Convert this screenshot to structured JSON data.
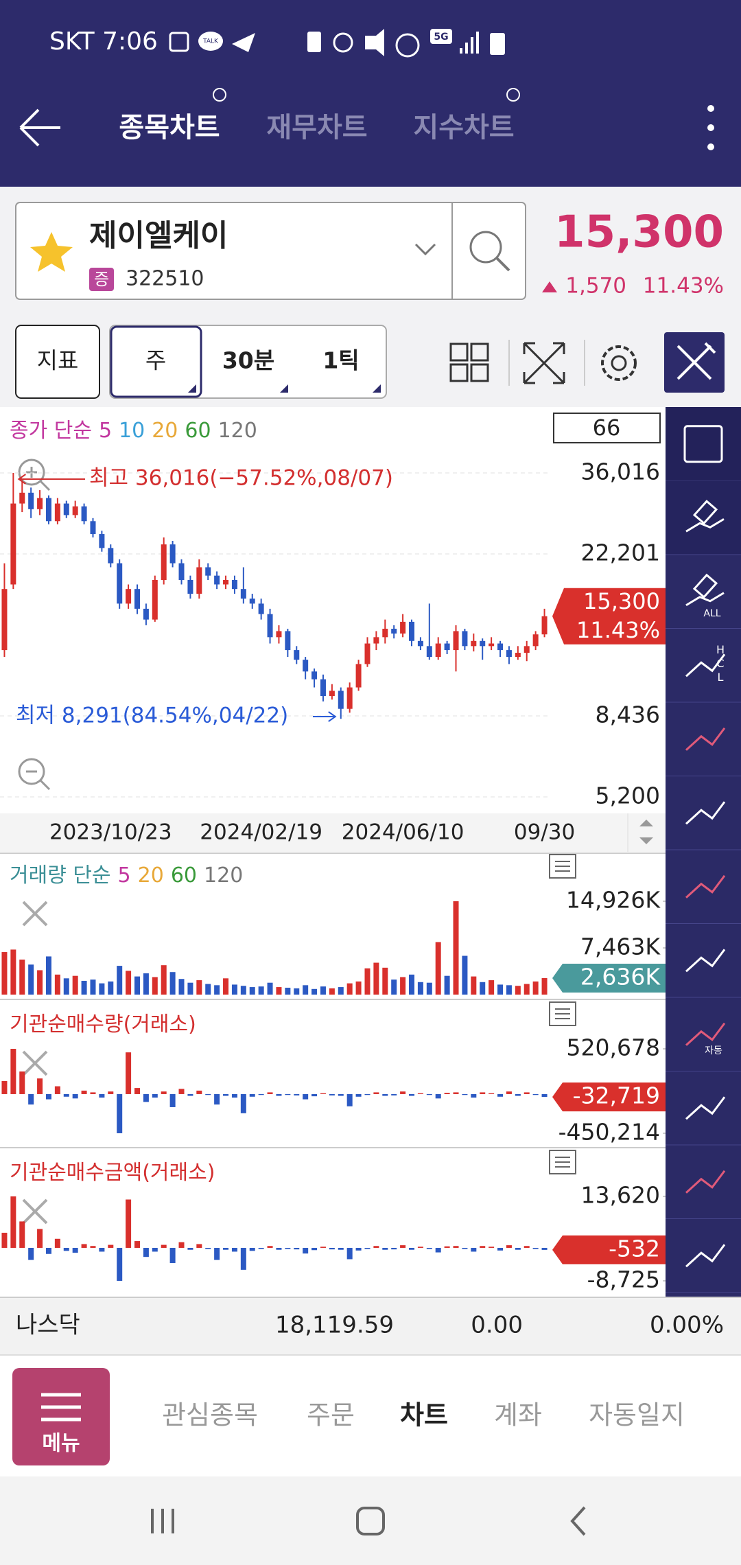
{
  "status_bar": {
    "time": "SKT 7:06",
    "talk": "TALK",
    "network": "5G"
  },
  "header": {
    "tabs": [
      "종목차트",
      "재무차트",
      "지수차트"
    ]
  },
  "stock": {
    "name": "제이엘케이",
    "market_badge": "증",
    "code": "322510",
    "price": "15,300",
    "change": "1,570",
    "change_rate": "11.43%"
  },
  "toolbar": {
    "buttons": [
      "지표",
      "주",
      "30분",
      "1틱"
    ]
  },
  "tools": {
    "all": "ALL",
    "hcl": [
      "H",
      "C",
      "L"
    ],
    "auto": "자동"
  },
  "chart_data": [
    {
      "type": "candlestick",
      "legend_title": "종가 단순",
      "ma_periods": [
        5,
        10,
        20,
        60,
        120
      ],
      "ma_colors": [
        "#c2379f",
        "#3aa0d8",
        "#e8a838",
        "#3a9a3a",
        "#777777"
      ],
      "legend_color": "#c2379f",
      "visible_count": 66,
      "categories": [
        null,
        null,
        null,
        null,
        null,
        null,
        null,
        null,
        null,
        null,
        null,
        null,
        "2023/10/23",
        null,
        null,
        null,
        null,
        null,
        null,
        null,
        null,
        null,
        null,
        null,
        null,
        null,
        null,
        null,
        null,
        "2024/02/19",
        null,
        null,
        null,
        null,
        null,
        null,
        null,
        null,
        null,
        null,
        null,
        null,
        null,
        null,
        null,
        "2024/06/10",
        null,
        null,
        null,
        null,
        null,
        null,
        null,
        null,
        null,
        null,
        null,
        null,
        null,
        null,
        null,
        "09/30"
      ],
      "open": [
        12500,
        18500,
        30000,
        32000,
        29000,
        31000,
        27000,
        30000,
        28000,
        29500,
        27000,
        25000,
        23000,
        21000,
        16500,
        18000,
        16000,
        15000,
        19000,
        23500,
        21000,
        19000,
        17500,
        20500,
        19500,
        18500,
        19000,
        18000,
        17000,
        16500,
        15500,
        13500,
        14000,
        12500,
        11800,
        11000,
        10500,
        9500,
        9800,
        8800,
        10000,
        11500,
        13000,
        13500,
        14200,
        13800,
        14800,
        13200,
        12800,
        12000,
        13000,
        12500,
        14000,
        12800,
        13200,
        12800,
        13000,
        12500,
        12000,
        12300,
        12800,
        13730
      ],
      "high": [
        21000,
        36016,
        34500,
        33000,
        32500,
        31500,
        31000,
        30500,
        30500,
        30000,
        27500,
        25500,
        23500,
        21500,
        18500,
        18500,
        16500,
        19500,
        24500,
        24000,
        21500,
        19500,
        21500,
        21000,
        20000,
        19500,
        19500,
        20500,
        17500,
        17000,
        16000,
        14500,
        14200,
        12800,
        12000,
        11200,
        10800,
        10200,
        10000,
        10300,
        11800,
        13500,
        14000,
        15000,
        14500,
        15500,
        15000,
        13500,
        16500,
        13500,
        13200,
        14500,
        14200,
        13800,
        13400,
        13500,
        13200,
        12800,
        12800,
        13200,
        14000,
        16000
      ],
      "low": [
        12000,
        18000,
        28500,
        27500,
        28000,
        26500,
        26500,
        27500,
        27500,
        26500,
        24500,
        22500,
        20500,
        16000,
        16000,
        15500,
        14500,
        14800,
        18500,
        20500,
        18500,
        17000,
        17000,
        19000,
        18000,
        18000,
        17500,
        16500,
        16000,
        15000,
        13000,
        13000,
        12000,
        11500,
        10500,
        10000,
        9200,
        9300,
        8291,
        8600,
        9800,
        11300,
        12500,
        13000,
        13400,
        13500,
        12800,
        12500,
        11800,
        11800,
        12200,
        11000,
        12500,
        12400,
        11800,
        12500,
        12000,
        11500,
        11800,
        11700,
        12500,
        13500
      ],
      "close": [
        18000,
        30000,
        32000,
        29000,
        31000,
        27000,
        30000,
        28000,
        29500,
        27000,
        25000,
        23000,
        21000,
        16500,
        18000,
        16000,
        15000,
        19000,
        23500,
        21000,
        19000,
        17500,
        20500,
        19500,
        18500,
        19000,
        18000,
        17000,
        16500,
        15500,
        13500,
        14000,
        12500,
        11800,
        11000,
        10500,
        9500,
        9800,
        8800,
        10000,
        11500,
        13000,
        13500,
        14200,
        13800,
        14800,
        13200,
        12800,
        12000,
        13000,
        12500,
        14000,
        12800,
        13200,
        12800,
        13000,
        12500,
        12000,
        12300,
        12800,
        13730,
        15300
      ],
      "up_color": "#d9302c",
      "down_color": "#2b59c3",
      "ylim": [
        5200,
        36016
      ],
      "log_scale": true,
      "grid": true,
      "yticks": [
        {
          "value": 36016,
          "label": "36,016"
        },
        {
          "value": 22201,
          "label": "22,201"
        },
        {
          "value": 8436,
          "label": "8,436"
        },
        {
          "value": 5200,
          "label": "5,200"
        }
      ],
      "annotations": [
        {
          "text": "최고 36,016(−57.52%,08/07)",
          "color": "#d32f2f"
        },
        {
          "text": "최저 8,291(84.54%,04/22)",
          "color": "#2a5bd7"
        }
      ],
      "price_label": "15,300",
      "rate_label": "11.43%",
      "label_color": "#d9302c"
    },
    {
      "type": "bar",
      "title": "거래량 단순",
      "title_color": "#3b8f96",
      "ma_periods": [
        5,
        20,
        60,
        120
      ],
      "ma_colors": [
        "#c2379f",
        "#e8a838",
        "#3a9a3a",
        "#777777"
      ],
      "values": [
        6800,
        7200,
        5600,
        4800,
        3900,
        6100,
        3200,
        2600,
        3000,
        2200,
        2400,
        1800,
        2100,
        4600,
        3800,
        2900,
        3400,
        2800,
        4700,
        3600,
        2500,
        1900,
        2300,
        1700,
        1500,
        2600,
        1600,
        1400,
        1200,
        1300,
        1900,
        1200,
        1100,
        1000,
        1500,
        900,
        1300,
        1000,
        1200,
        1800,
        2100,
        4200,
        5100,
        4300,
        2400,
        2800,
        3200,
        2000,
        1900,
        8400,
        3000,
        14926,
        6200,
        2900,
        2000,
        2300,
        1600,
        1500,
        1400,
        1700,
        2100,
        2636
      ],
      "value_labels": [
        null,
        null,
        null,
        null,
        null,
        null,
        null,
        null,
        null,
        null,
        null,
        null,
        null,
        null,
        null,
        null,
        null,
        null,
        null,
        null,
        null,
        null,
        null,
        null,
        null,
        null,
        null,
        null,
        null,
        null,
        null,
        null,
        null,
        null,
        null,
        null,
        null,
        null,
        null,
        null,
        null,
        null,
        null,
        null,
        null,
        null,
        null,
        null,
        null,
        null,
        null,
        null,
        null,
        null,
        null,
        null,
        null,
        null,
        null,
        null,
        null,
        "2,636K"
      ],
      "up_color": "#d9302c",
      "down_color": "#2b59c3",
      "label_color": "#4a9a9c",
      "ylim": [
        0,
        14926
      ],
      "yticks": [
        {
          "value": 14926,
          "label": "14,926K"
        },
        {
          "value": 7463,
          "label": "7,463K"
        }
      ]
    },
    {
      "type": "bar",
      "title": "기관순매수량(거래소)",
      "title_color": "#d32f2f",
      "values": [
        150000,
        520678,
        260000,
        -120000,
        180000,
        -60000,
        90000,
        -30000,
        -50000,
        40000,
        20000,
        -40000,
        30000,
        -450214,
        480000,
        70000,
        -90000,
        -40000,
        30000,
        -150000,
        60000,
        -20000,
        40000,
        -10000,
        -120000,
        -20000,
        -40000,
        -220000,
        -30000,
        -10000,
        20000,
        -20000,
        -10000,
        -15000,
        -60000,
        -25000,
        10000,
        -15000,
        -20000,
        -140000,
        -30000,
        -10000,
        20000,
        -20000,
        -15000,
        30000,
        -20000,
        10000,
        -10000,
        -50000,
        15000,
        20000,
        -10000,
        -40000,
        20000,
        10000,
        -30000,
        30000,
        -20000,
        20000,
        -10000,
        -32719
      ],
      "value_labels": [
        null,
        null,
        null,
        null,
        null,
        null,
        null,
        null,
        null,
        null,
        null,
        null,
        null,
        null,
        null,
        null,
        null,
        null,
        null,
        null,
        null,
        null,
        null,
        null,
        null,
        null,
        null,
        null,
        null,
        null,
        null,
        null,
        null,
        null,
        null,
        null,
        null,
        null,
        null,
        null,
        null,
        null,
        null,
        null,
        null,
        null,
        null,
        null,
        null,
        null,
        null,
        null,
        null,
        null,
        null,
        null,
        null,
        null,
        null,
        null,
        null,
        "-32,719"
      ],
      "positive_color": "#d9302c",
      "negative_color": "#2b59c3",
      "label_color": "#d9302c",
      "ylim": [
        -450214,
        520678
      ],
      "yticks": [
        {
          "value": 520678,
          "label": "520,678"
        },
        {
          "value": -450214,
          "label": "-450,214"
        }
      ]
    },
    {
      "type": "bar",
      "title": "기관순매수금액(거래소)",
      "title_color": "#d32f2f",
      "values": [
        4000,
        13620,
        7000,
        -3200,
        5000,
        -1600,
        2400,
        -800,
        -1300,
        1000,
        500,
        -1000,
        800,
        -8725,
        12800,
        1800,
        -2400,
        -1000,
        800,
        -4000,
        1500,
        -500,
        1000,
        -300,
        -3200,
        -500,
        -1000,
        -5800,
        -800,
        -300,
        500,
        -500,
        -300,
        -400,
        -1500,
        -600,
        300,
        -400,
        -500,
        -3000,
        -700,
        -300,
        500,
        -500,
        -400,
        700,
        -500,
        300,
        -300,
        -1200,
        400,
        500,
        -300,
        -1000,
        500,
        300,
        -700,
        700,
        -500,
        500,
        -300,
        -532
      ],
      "value_labels": [
        null,
        null,
        null,
        null,
        null,
        null,
        null,
        null,
        null,
        null,
        null,
        null,
        null,
        null,
        null,
        null,
        null,
        null,
        null,
        null,
        null,
        null,
        null,
        null,
        null,
        null,
        null,
        null,
        null,
        null,
        null,
        null,
        null,
        null,
        null,
        null,
        null,
        null,
        null,
        null,
        null,
        null,
        null,
        null,
        null,
        null,
        null,
        null,
        null,
        null,
        null,
        null,
        null,
        null,
        null,
        null,
        null,
        null,
        null,
        null,
        null,
        "-532"
      ],
      "positive_color": "#d9302c",
      "negative_color": "#2b59c3",
      "label_color": "#d9302c",
      "ylim": [
        -8725,
        13620
      ],
      "yticks": [
        {
          "value": 13620,
          "label": "13,620"
        },
        {
          "value": -8725,
          "label": "-8,725"
        }
      ]
    }
  ],
  "ticker": {
    "name": "나스닥",
    "value": "18,119.59",
    "change": "0.00",
    "rate": "0.00%"
  },
  "nav": {
    "menu": "메뉴",
    "items": [
      "관심종목",
      "주문",
      "차트",
      "계좌",
      "자동일지"
    ]
  }
}
